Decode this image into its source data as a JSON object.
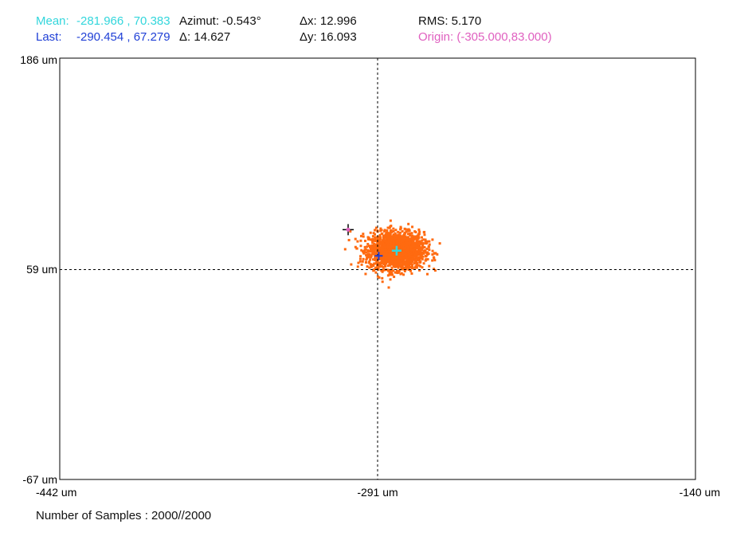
{
  "header": {
    "mean_label": "Mean:",
    "mean_value": "-281.966 , 70.383",
    "last_label": "Last:",
    "last_value": "-290.454 , 67.279",
    "azimut": "Azimut: -0.543°",
    "delta": "Δ: 14.627",
    "dx": "Δx: 12.996",
    "dy": "Δy: 16.093",
    "rms": "RMS: 5.170",
    "origin": "Origin: (-305.000,83.000)"
  },
  "footer": {
    "samples": "Number of Samples : 2000//2000"
  },
  "colors": {
    "mean": "#33d6dc",
    "last": "#1f3fd6",
    "origin": "#e060c0",
    "scatter": "#ff6a10",
    "axis": "#000000"
  },
  "chart_data": {
    "type": "scatter",
    "x_range": [
      -442,
      -140
    ],
    "y_range": [
      -67,
      186
    ],
    "x_ticks": [
      "-442 um",
      "-291 um",
      "-140 um"
    ],
    "y_ticks": [
      "186 um",
      "59 um",
      "-67 um"
    ],
    "crosshair": {
      "x": -291,
      "y": 59
    },
    "series": [
      {
        "cloud_center": [
          -281.966,
          70.383
        ],
        "cloud_spread": [
          6.5,
          5.5
        ],
        "count": 2000
      }
    ],
    "markers": {
      "mean": [
        -281.966,
        70.383
      ],
      "last": [
        -290.454,
        67.279
      ],
      "origin": [
        -305.0,
        83.0
      ]
    }
  }
}
